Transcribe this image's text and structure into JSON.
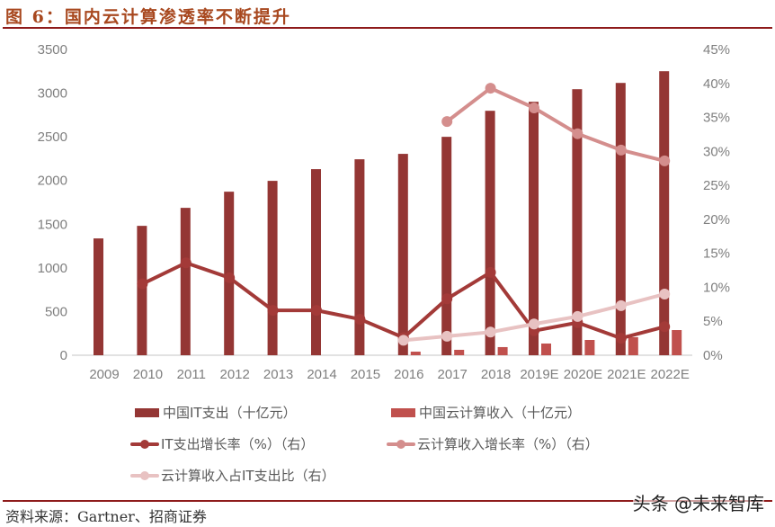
{
  "header": {
    "title": "图 6：国内云计算渗透率不断提升"
  },
  "legend": {
    "items": [
      {
        "label": "中国IT支出（十亿元）",
        "type": "bar",
        "color": "#943634"
      },
      {
        "label": "中国云计算收入（十亿元）",
        "type": "bar",
        "color": "#C0504D"
      },
      {
        "label": "IT支出增长率（%）（右）",
        "type": "line",
        "color": "#A33A38"
      },
      {
        "label": "云计算收入增长率（%）（右）",
        "type": "line",
        "color": "#D48E8D"
      },
      {
        "label": "云计算收入占IT支出比（右）",
        "type": "line",
        "color": "#E8C2C2"
      }
    ]
  },
  "footer": {
    "source": "资料来源：Gartner、招商证券",
    "watermark": "头条 @未来智库"
  },
  "chart_data": {
    "type": "bar",
    "title": "图 6：国内云计算渗透率不断提升",
    "xlabel": "",
    "ylabel": "",
    "categories": [
      "2009",
      "2010",
      "2011",
      "2012",
      "2013",
      "2014",
      "2015",
      "2016",
      "2017",
      "2018",
      "2019E",
      "2020E",
      "2021E",
      "2022E"
    ],
    "left_axis": {
      "ylim": [
        0,
        3500
      ],
      "ticks": [
        "0",
        "500",
        "1000",
        "1500",
        "2000",
        "2500",
        "3000",
        "3500"
      ]
    },
    "right_axis": {
      "ylim": [
        0,
        45
      ],
      "ticks": [
        "0%",
        "5%",
        "10%",
        "15%",
        "20%",
        "25%",
        "30%",
        "35%",
        "40%",
        "45%"
      ]
    },
    "grid": false,
    "legend_position": "bottom",
    "series": [
      {
        "name": "中国IT支出（十亿元）",
        "type": "bar",
        "axis": "left",
        "color": "#943634",
        "values": [
          1337,
          1481,
          1687,
          1872,
          1996,
          2130,
          2243,
          2305,
          2500,
          2798,
          2901,
          3045,
          3117,
          3251
        ]
      },
      {
        "name": "中国云计算收入（十亿元）",
        "type": "bar",
        "axis": "left",
        "color": "#C0504D",
        "values": [
          null,
          null,
          null,
          null,
          null,
          null,
          null,
          41,
          62,
          93,
          134,
          175,
          206,
          288
        ]
      },
      {
        "name": "IT支出增长率（%）（右）",
        "type": "line",
        "axis": "right",
        "color": "#A33A38",
        "values": [
          null,
          10.5,
          13.6,
          11.4,
          6.6,
          6.6,
          5.3,
          2.6,
          8.3,
          12.2,
          3.6,
          4.8,
          2.5,
          4.2
        ]
      },
      {
        "name": "云计算收入增长率（%）（右）",
        "type": "line",
        "axis": "right",
        "color": "#D48E8D",
        "values": [
          null,
          null,
          null,
          null,
          null,
          null,
          null,
          null,
          34.4,
          39.3,
          36.4,
          32.6,
          30.2,
          28.6
        ]
      },
      {
        "name": "云计算收入占IT支出比（右）",
        "type": "line",
        "axis": "right",
        "color": "#E8C2C2",
        "values": [
          null,
          null,
          null,
          null,
          null,
          null,
          null,
          2.2,
          2.8,
          3.4,
          4.6,
          5.7,
          7.3,
          9.0
        ]
      }
    ]
  }
}
